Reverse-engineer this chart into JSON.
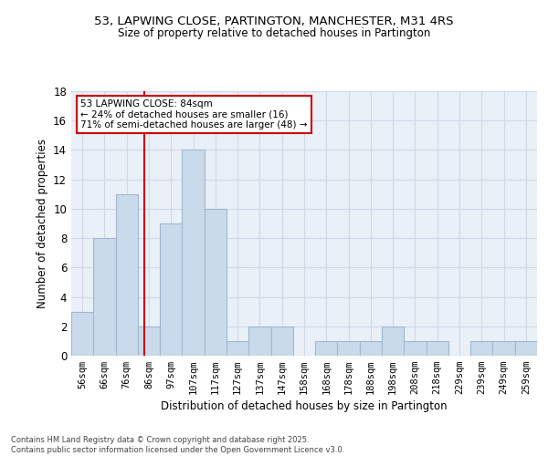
{
  "title1": "53, LAPWING CLOSE, PARTINGTON, MANCHESTER, M31 4RS",
  "title2": "Size of property relative to detached houses in Partington",
  "xlabel": "Distribution of detached houses by size in Partington",
  "ylabel": "Number of detached properties",
  "bar_labels": [
    "56sqm",
    "66sqm",
    "76sqm",
    "86sqm",
    "97sqm",
    "107sqm",
    "117sqm",
    "127sqm",
    "137sqm",
    "147sqm",
    "158sqm",
    "168sqm",
    "178sqm",
    "188sqm",
    "198sqm",
    "208sqm",
    "218sqm",
    "229sqm",
    "239sqm",
    "249sqm",
    "259sqm"
  ],
  "bar_values": [
    3,
    8,
    11,
    2,
    9,
    14,
    10,
    1,
    2,
    2,
    0,
    1,
    1,
    1,
    2,
    1,
    1,
    0,
    1,
    1,
    1
  ],
  "bar_color": "#c9daea",
  "bar_edge_color": "#a0b8cf",
  "bar_linewidth": 0.8,
  "vline_color": "#cc0000",
  "annotation_text": "53 LAPWING CLOSE: 84sqm\n← 24% of detached houses are smaller (16)\n71% of semi-detached houses are larger (48) →",
  "annotation_box_color": "#ffffff",
  "annotation_box_edge": "#cc0000",
  "grid_color": "#d0d8e8",
  "background_color": "#eaf0f8",
  "yticks": [
    0,
    2,
    4,
    6,
    8,
    10,
    12,
    14,
    16,
    18
  ],
  "ylim": [
    0,
    18
  ],
  "footer_text": "Contains HM Land Registry data © Crown copyright and database right 2025.\nContains public sector information licensed under the Open Government Licence v3.0.",
  "vline_pos": 2.8
}
